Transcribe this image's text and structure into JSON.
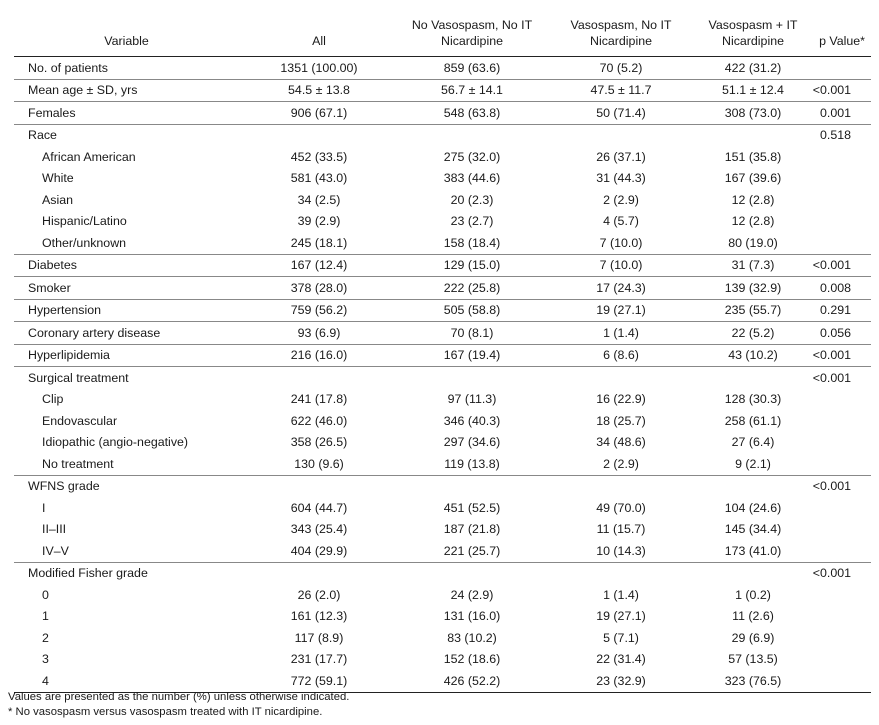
{
  "table": {
    "headers": {
      "variable": "Variable",
      "all": "All",
      "no_vasospasm": "No Vasospasm, No IT Nicardipine",
      "vasospasm_no_it": "Vasospasm, No IT Nicardipine",
      "vasospasm_it": "Vasospasm + IT Nicardipine",
      "p_value": "p Value*"
    },
    "rows": [
      {
        "variable": "No. of patients",
        "all": "1351 (100.00)",
        "no_vasospasm": "859 (63.6)",
        "vasospasm_no_it": "70 (5.2)",
        "vasospasm_it": "422 (31.2)",
        "p": "",
        "sub": false
      },
      {
        "variable": "Mean age ± SD, yrs",
        "all": "54.5 ± 13.8",
        "no_vasospasm": "56.7 ± 14.1",
        "vasospasm_no_it": "47.5 ± 11.7",
        "vasospasm_it": "51.1 ± 12.4",
        "p": "<0.001",
        "sub": false
      },
      {
        "variable": "Females",
        "all": "906 (67.1)",
        "no_vasospasm": "548 (63.8)",
        "vasospasm_no_it": "50 (71.4)",
        "vasospasm_it": "308 (73.0)",
        "p": "0.001",
        "sub": false
      },
      {
        "variable": "Race",
        "all": "",
        "no_vasospasm": "",
        "vasospasm_no_it": "",
        "vasospasm_it": "",
        "p": "0.518",
        "sub": false
      },
      {
        "variable": "African American",
        "all": "452 (33.5)",
        "no_vasospasm": "275 (32.0)",
        "vasospasm_no_it": "26 (37.1)",
        "vasospasm_it": "151 (35.8)",
        "p": "",
        "sub": true
      },
      {
        "variable": "White",
        "all": "581 (43.0)",
        "no_vasospasm": "383 (44.6)",
        "vasospasm_no_it": "31 (44.3)",
        "vasospasm_it": "167 (39.6)",
        "p": "",
        "sub": true
      },
      {
        "variable": "Asian",
        "all": "34 (2.5)",
        "no_vasospasm": "20 (2.3)",
        "vasospasm_no_it": "2 (2.9)",
        "vasospasm_it": "12 (2.8)",
        "p": "",
        "sub": true
      },
      {
        "variable": "Hispanic/Latino",
        "all": "39 (2.9)",
        "no_vasospasm": "23 (2.7)",
        "vasospasm_no_it": "4 (5.7)",
        "vasospasm_it": "12 (2.8)",
        "p": "",
        "sub": true
      },
      {
        "variable": "Other/unknown",
        "all": "245 (18.1)",
        "no_vasospasm": "158 (18.4)",
        "vasospasm_no_it": "7 (10.0)",
        "vasospasm_it": "80 (19.0)",
        "p": "",
        "sub": true
      },
      {
        "variable": "Diabetes",
        "all": "167 (12.4)",
        "no_vasospasm": "129 (15.0)",
        "vasospasm_no_it": "7 (10.0)",
        "vasospasm_it": "31 (7.3)",
        "p": "<0.001",
        "sub": false
      },
      {
        "variable": "Smoker",
        "all": "378 (28.0)",
        "no_vasospasm": "222 (25.8)",
        "vasospasm_no_it": "17 (24.3)",
        "vasospasm_it": "139 (32.9)",
        "p": "0.008",
        "sub": false
      },
      {
        "variable": "Hypertension",
        "all": "759 (56.2)",
        "no_vasospasm": "505 (58.8)",
        "vasospasm_no_it": "19 (27.1)",
        "vasospasm_it": "235 (55.7)",
        "p": "0.291",
        "sub": false
      },
      {
        "variable": "Coronary artery disease",
        "all": "93 (6.9)",
        "no_vasospasm": "70 (8.1)",
        "vasospasm_no_it": "1 (1.4)",
        "vasospasm_it": "22 (5.2)",
        "p": "0.056",
        "sub": false
      },
      {
        "variable": "Hyperlipidemia",
        "all": "216 (16.0)",
        "no_vasospasm": "167 (19.4)",
        "vasospasm_no_it": "6 (8.6)",
        "vasospasm_it": "43 (10.2)",
        "p": "<0.001",
        "sub": false
      },
      {
        "variable": "Surgical treatment",
        "all": "",
        "no_vasospasm": "",
        "vasospasm_no_it": "",
        "vasospasm_it": "",
        "p": "<0.001",
        "sub": false
      },
      {
        "variable": "Clip",
        "all": "241 (17.8)",
        "no_vasospasm": "97 (11.3)",
        "vasospasm_no_it": "16 (22.9)",
        "vasospasm_it": "128 (30.3)",
        "p": "",
        "sub": true
      },
      {
        "variable": "Endovascular",
        "all": "622 (46.0)",
        "no_vasospasm": "346 (40.3)",
        "vasospasm_no_it": "18 (25.7)",
        "vasospasm_it": "258 (61.1)",
        "p": "",
        "sub": true
      },
      {
        "variable": "Idiopathic (angio-negative)",
        "all": "358 (26.5)",
        "no_vasospasm": "297 (34.6)",
        "vasospasm_no_it": "34 (48.6)",
        "vasospasm_it": "27 (6.4)",
        "p": "",
        "sub": true
      },
      {
        "variable": "No treatment",
        "all": "130 (9.6)",
        "no_vasospasm": "119 (13.8)",
        "vasospasm_no_it": "2 (2.9)",
        "vasospasm_it": "9 (2.1)",
        "p": "",
        "sub": true
      },
      {
        "variable": "WFNS grade",
        "all": "",
        "no_vasospasm": "",
        "vasospasm_no_it": "",
        "vasospasm_it": "",
        "p": "<0.001",
        "sub": false
      },
      {
        "variable": "I",
        "all": "604 (44.7)",
        "no_vasospasm": "451 (52.5)",
        "vasospasm_no_it": "49 (70.0)",
        "vasospasm_it": "104 (24.6)",
        "p": "",
        "sub": true
      },
      {
        "variable": "II–III",
        "all": "343 (25.4)",
        "no_vasospasm": "187 (21.8)",
        "vasospasm_no_it": "11 (15.7)",
        "vasospasm_it": "145 (34.4)",
        "p": "",
        "sub": true
      },
      {
        "variable": "IV–V",
        "all": "404 (29.9)",
        "no_vasospasm": "221 (25.7)",
        "vasospasm_no_it": "10 (14.3)",
        "vasospasm_it": "173 (41.0)",
        "p": "",
        "sub": true
      },
      {
        "variable": "Modified Fisher grade",
        "all": "",
        "no_vasospasm": "",
        "vasospasm_no_it": "",
        "vasospasm_it": "",
        "p": "<0.001",
        "sub": false
      },
      {
        "variable": "0",
        "all": "26 (2.0)",
        "no_vasospasm": "24 (2.9)",
        "vasospasm_no_it": "1 (1.4)",
        "vasospasm_it": "1 (0.2)",
        "p": "",
        "sub": true
      },
      {
        "variable": "1",
        "all": "161 (12.3)",
        "no_vasospasm": "131 (16.0)",
        "vasospasm_no_it": "19 (27.1)",
        "vasospasm_it": "11 (2.6)",
        "p": "",
        "sub": true
      },
      {
        "variable": "2",
        "all": "117 (8.9)",
        "no_vasospasm": "83 (10.2)",
        "vasospasm_no_it": "5 (7.1)",
        "vasospasm_it": "29 (6.9)",
        "p": "",
        "sub": true
      },
      {
        "variable": "3",
        "all": "231 (17.7)",
        "no_vasospasm": "152 (18.6)",
        "vasospasm_no_it": "22 (31.4)",
        "vasospasm_it": "57 (13.5)",
        "p": "",
        "sub": true
      },
      {
        "variable": "4",
        "all": "772 (59.1)",
        "no_vasospasm": "426 (52.2)",
        "vasospasm_no_it": "23 (32.9)",
        "vasospasm_it": "323 (76.5)",
        "p": "",
        "sub": true
      }
    ]
  },
  "footnotes": {
    "values_note": "Values are presented as the number (%) unless otherwise indicated.",
    "p_note": "* No vasospasm versus vasospasm treated with IT nicardipine."
  }
}
